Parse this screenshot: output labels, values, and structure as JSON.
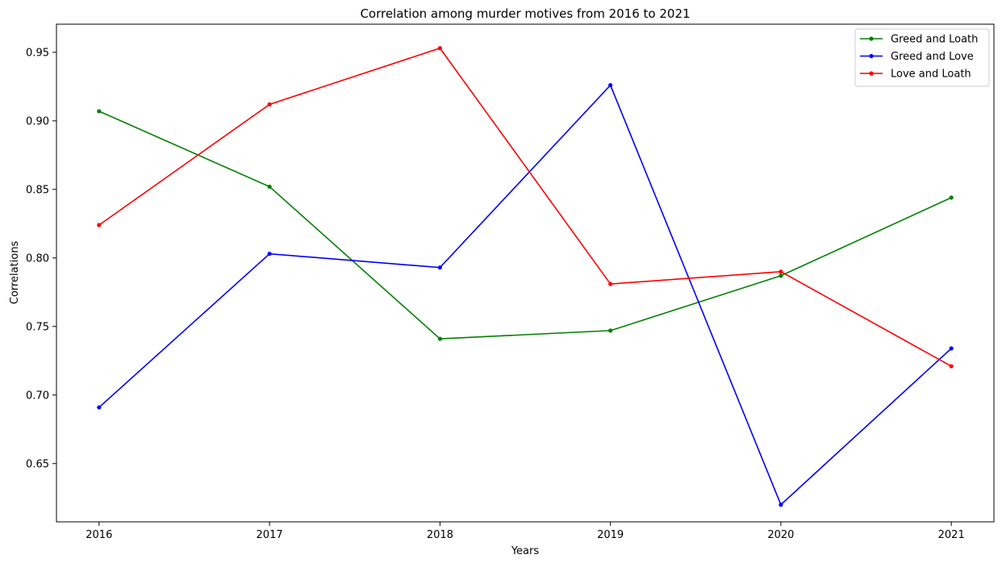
{
  "chart_data": {
    "type": "line",
    "title": "Correlation among murder motives from 2016 to 2021",
    "xlabel": "Years",
    "ylabel": "Correlations",
    "x": [
      "2016",
      "2017",
      "2018",
      "2019",
      "2020",
      "2021"
    ],
    "xlim": [
      2015.75,
      2021.25
    ],
    "ylim": [
      0.6075,
      0.9705
    ],
    "yticks": [
      "0.65",
      "0.70",
      "0.75",
      "0.80",
      "0.85",
      "0.90",
      "0.95"
    ],
    "grid": false,
    "legend_position": "top-right",
    "series": [
      {
        "name": "Greed and Loath",
        "color": "#008000",
        "values": [
          0.907,
          0.852,
          0.741,
          0.747,
          0.787,
          0.844
        ]
      },
      {
        "name": "Greed and Love",
        "color": "#0000ff",
        "values": [
          0.691,
          0.803,
          0.793,
          0.926,
          0.62,
          0.734
        ]
      },
      {
        "name": "Love and Loath",
        "color": "#ff0000",
        "values": [
          0.824,
          0.912,
          0.953,
          0.781,
          0.79,
          0.721
        ]
      }
    ]
  }
}
